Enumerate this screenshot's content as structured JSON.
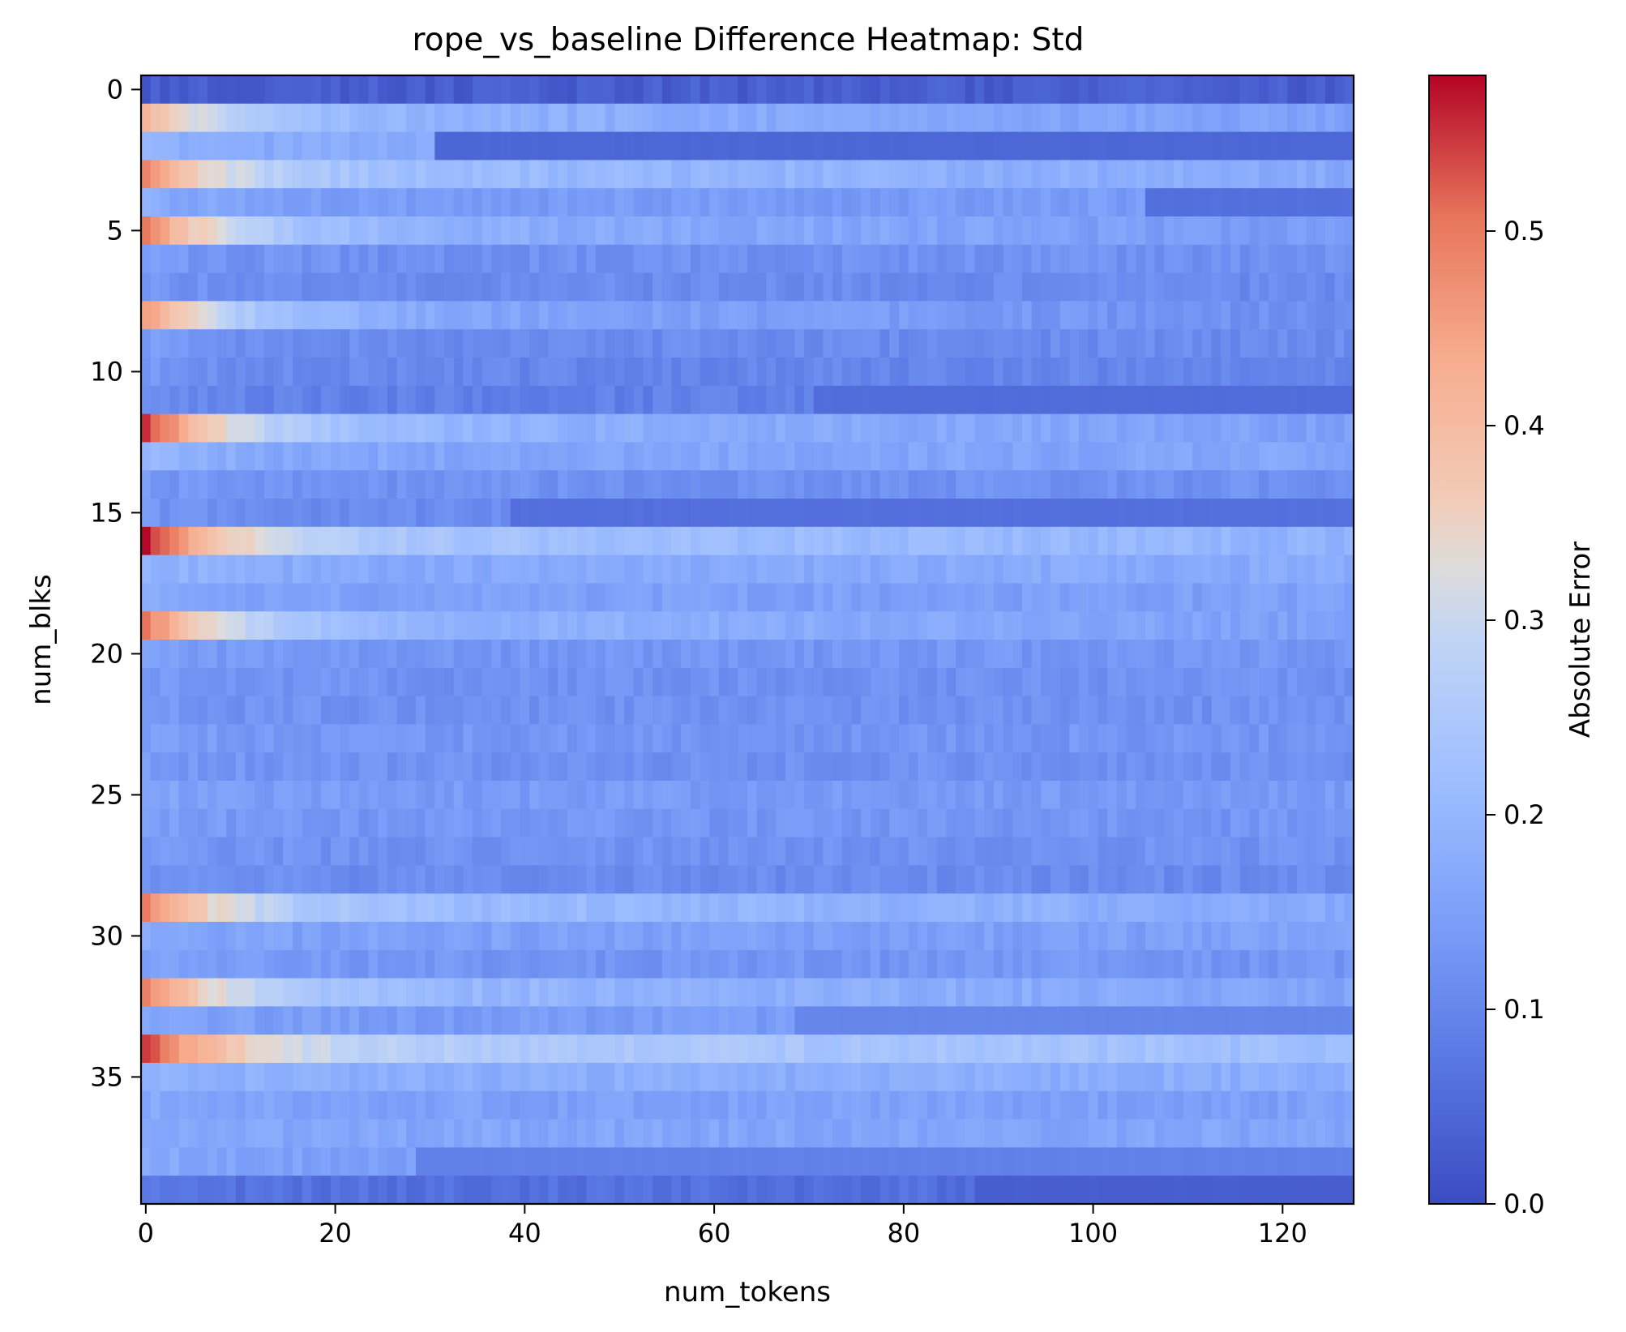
{
  "chart_data": {
    "type": "heatmap",
    "title": "rope_vs_baseline Difference Heatmap: Std",
    "xlabel": "num_tokens",
    "ylabel": "num_blks",
    "colorbar_label": "Absolute Error",
    "colormap": "coolwarm",
    "rows": 40,
    "cols": 128,
    "xlim": [
      0,
      127
    ],
    "ylim": [
      0,
      39
    ],
    "zlim": [
      0.0,
      0.58
    ],
    "x_ticks": [
      0,
      20,
      40,
      60,
      80,
      100,
      120
    ],
    "y_ticks": [
      0,
      5,
      10,
      15,
      20,
      25,
      30,
      35
    ],
    "colorbar_ticks": [
      "0.0",
      "0.1",
      "0.2",
      "0.3",
      "0.4",
      "0.5"
    ],
    "row_profiles": [
      {
        "row": 0,
        "base": 0.03,
        "peak": 0.03,
        "break_col": null,
        "after": null
      },
      {
        "row": 1,
        "base": 0.2,
        "peak": 0.42,
        "break_col": null,
        "after": null
      },
      {
        "row": 2,
        "base": 0.17,
        "peak": 0.19,
        "break_col": 31,
        "after": 0.045
      },
      {
        "row": 3,
        "base": 0.22,
        "peak": 0.48,
        "break_col": null,
        "after": null
      },
      {
        "row": 4,
        "base": 0.14,
        "peak": 0.18,
        "break_col": 106,
        "after": 0.06
      },
      {
        "row": 5,
        "base": 0.19,
        "peak": 0.5,
        "break_col": null,
        "after": null
      },
      {
        "row": 6,
        "base": 0.12,
        "peak": 0.14,
        "break_col": null,
        "after": null
      },
      {
        "row": 7,
        "base": 0.11,
        "peak": 0.13,
        "break_col": null,
        "after": null
      },
      {
        "row": 8,
        "base": 0.17,
        "peak": 0.46,
        "break_col": null,
        "after": null
      },
      {
        "row": 9,
        "base": 0.11,
        "peak": 0.14,
        "break_col": null,
        "after": null
      },
      {
        "row": 10,
        "base": 0.1,
        "peak": 0.14,
        "break_col": null,
        "after": null
      },
      {
        "row": 11,
        "base": 0.09,
        "peak": 0.11,
        "break_col": 71,
        "after": 0.055
      },
      {
        "row": 12,
        "base": 0.2,
        "peak": 0.56,
        "break_col": null,
        "after": null
      },
      {
        "row": 13,
        "base": 0.16,
        "peak": 0.2,
        "break_col": null,
        "after": null
      },
      {
        "row": 14,
        "base": 0.12,
        "peak": 0.14,
        "break_col": null,
        "after": null
      },
      {
        "row": 15,
        "base": 0.11,
        "peak": 0.13,
        "break_col": 39,
        "after": 0.06
      },
      {
        "row": 16,
        "base": 0.24,
        "peak": 0.58,
        "break_col": null,
        "after": null
      },
      {
        "row": 17,
        "base": 0.17,
        "peak": 0.2,
        "break_col": null,
        "after": null
      },
      {
        "row": 18,
        "base": 0.15,
        "peak": 0.17,
        "break_col": null,
        "after": null
      },
      {
        "row": 19,
        "base": 0.2,
        "peak": 0.5,
        "break_col": null,
        "after": null
      },
      {
        "row": 20,
        "base": 0.13,
        "peak": 0.15,
        "break_col": null,
        "after": null
      },
      {
        "row": 21,
        "base": 0.12,
        "peak": 0.14,
        "break_col": null,
        "after": null
      },
      {
        "row": 22,
        "base": 0.12,
        "peak": 0.14,
        "break_col": null,
        "after": null
      },
      {
        "row": 23,
        "base": 0.13,
        "peak": 0.15,
        "break_col": null,
        "after": null
      },
      {
        "row": 24,
        "base": 0.12,
        "peak": 0.14,
        "break_col": null,
        "after": null
      },
      {
        "row": 25,
        "base": 0.14,
        "peak": 0.16,
        "break_col": null,
        "after": null
      },
      {
        "row": 26,
        "base": 0.13,
        "peak": 0.15,
        "break_col": null,
        "after": null
      },
      {
        "row": 27,
        "base": 0.12,
        "peak": 0.14,
        "break_col": null,
        "after": null
      },
      {
        "row": 28,
        "base": 0.11,
        "peak": 0.13,
        "break_col": null,
        "after": null
      },
      {
        "row": 29,
        "base": 0.22,
        "peak": 0.5,
        "break_col": null,
        "after": null
      },
      {
        "row": 30,
        "base": 0.15,
        "peak": 0.17,
        "break_col": null,
        "after": null
      },
      {
        "row": 31,
        "base": 0.13,
        "peak": 0.15,
        "break_col": null,
        "after": null
      },
      {
        "row": 32,
        "base": 0.21,
        "peak": 0.5,
        "break_col": null,
        "after": null
      },
      {
        "row": 33,
        "base": 0.14,
        "peak": 0.16,
        "break_col": 69,
        "after": 0.1
      },
      {
        "row": 34,
        "base": 0.27,
        "peak": 0.55,
        "break_col": null,
        "after": null
      },
      {
        "row": 35,
        "base": 0.18,
        "peak": 0.2,
        "break_col": null,
        "after": null
      },
      {
        "row": 36,
        "base": 0.15,
        "peak": 0.17,
        "break_col": null,
        "after": null
      },
      {
        "row": 37,
        "base": 0.16,
        "peak": 0.18,
        "break_col": null,
        "after": null
      },
      {
        "row": 38,
        "base": 0.15,
        "peak": 0.17,
        "break_col": 29,
        "after": 0.09
      },
      {
        "row": 39,
        "base": 0.06,
        "peak": 0.07,
        "break_col": 88,
        "after": 0.03
      }
    ]
  }
}
